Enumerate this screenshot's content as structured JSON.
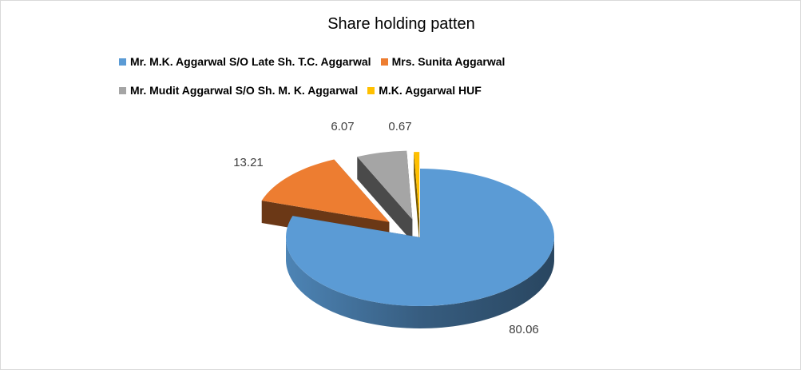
{
  "chart_data": {
    "type": "pie",
    "title": "Share holding patten",
    "legend_position": "top",
    "labels": [
      "Mr. M.K. Aggarwal S/O Late Sh. T.C. Aggarwal",
      "Mrs. Sunita Aggarwal",
      "Mr. Mudit Aggarwal S/O Sh. M. K. Aggarwal",
      "M.K. Aggarwal HUF"
    ],
    "values": [
      80.06,
      13.21,
      6.07,
      0.67
    ],
    "value_labels": [
      "80.06",
      "13.21",
      "6.07",
      "0.67"
    ],
    "colors": [
      "#5b9bd5",
      "#ed7d31",
      "#a5a5a5",
      "#ffc000"
    ],
    "style": "3d-exploded"
  }
}
